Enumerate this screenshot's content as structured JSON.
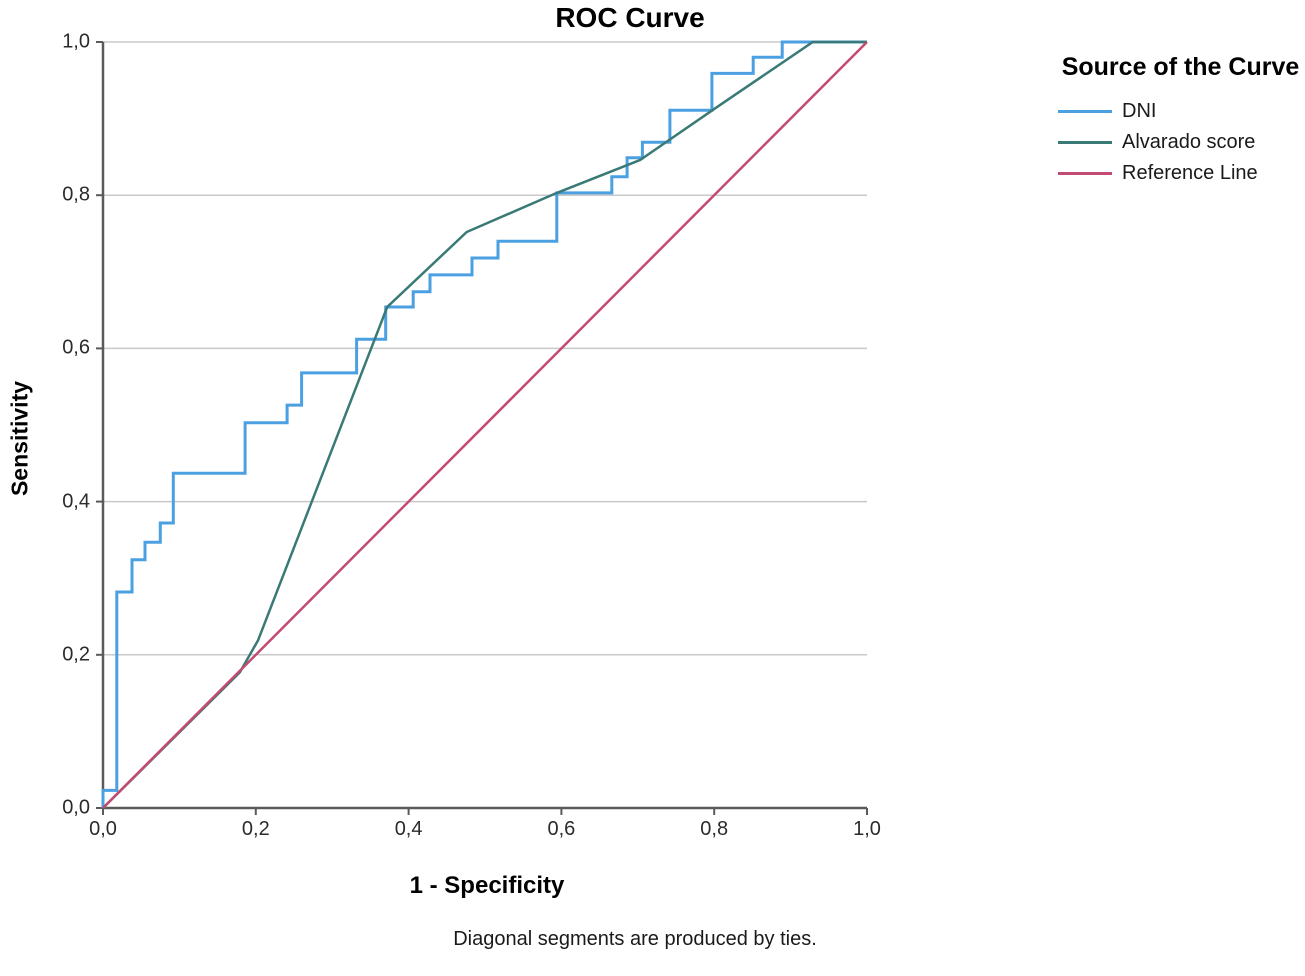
{
  "title": "ROC Curve",
  "footer": "Diagonal segments are produced by ties.",
  "legend": {
    "title": "Source of the Curve",
    "items": [
      {
        "label": "DNI",
        "color": "#4AA0E0"
      },
      {
        "label": "Alvarado score",
        "color": "#3A7A76"
      },
      {
        "label": "Reference Line",
        "color": "#C34A70"
      }
    ]
  },
  "chart_data": {
    "type": "line",
    "title": "ROC Curve",
    "xlabel": "1 - Specificity",
    "ylabel": "Sensitivity",
    "xlim": [
      0,
      1
    ],
    "ylim": [
      0,
      1
    ],
    "grid": "horizontal",
    "grid_color": "#C9C9C9",
    "axis_color": "#5A5A5A",
    "tick_color": "#2b2b2b",
    "legend_position": "right",
    "x_ticks": [
      0,
      0.2,
      0.4,
      0.6,
      0.8,
      1.0
    ],
    "y_ticks": [
      0,
      0.2,
      0.4,
      0.6,
      0.8,
      1.0
    ],
    "x_tick_labels": [
      "0,0",
      "0,2",
      "0,4",
      "0,6",
      "0,8",
      "1,0"
    ],
    "y_tick_labels": [
      "0,0",
      "0,2",
      "0,4",
      "0,6",
      "0,8",
      "1,0"
    ],
    "series": [
      {
        "name": "DNI",
        "color": "#4AA0E0",
        "width": 3,
        "points": [
          [
            0,
            0
          ],
          [
            0,
            0.023
          ],
          [
            0.018,
            0.023
          ],
          [
            0.018,
            0.282
          ],
          [
            0.038,
            0.282
          ],
          [
            0.038,
            0.324
          ],
          [
            0.055,
            0.324
          ],
          [
            0.055,
            0.347
          ],
          [
            0.075,
            0.347
          ],
          [
            0.075,
            0.372
          ],
          [
            0.092,
            0.372
          ],
          [
            0.092,
            0.437
          ],
          [
            0.186,
            0.437
          ],
          [
            0.186,
            0.503
          ],
          [
            0.241,
            0.503
          ],
          [
            0.241,
            0.526
          ],
          [
            0.26,
            0.526
          ],
          [
            0.26,
            0.568
          ],
          [
            0.332,
            0.568
          ],
          [
            0.332,
            0.612
          ],
          [
            0.37,
            0.612
          ],
          [
            0.37,
            0.654
          ],
          [
            0.406,
            0.654
          ],
          [
            0.406,
            0.674
          ],
          [
            0.428,
            0.674
          ],
          [
            0.428,
            0.696
          ],
          [
            0.483,
            0.696
          ],
          [
            0.483,
            0.718
          ],
          [
            0.517,
            0.718
          ],
          [
            0.517,
            0.74
          ],
          [
            0.594,
            0.74
          ],
          [
            0.594,
            0.803
          ],
          [
            0.666,
            0.803
          ],
          [
            0.666,
            0.824
          ],
          [
            0.686,
            0.824
          ],
          [
            0.686,
            0.849
          ],
          [
            0.706,
            0.849
          ],
          [
            0.706,
            0.869
          ],
          [
            0.742,
            0.869
          ],
          [
            0.742,
            0.911
          ],
          [
            0.797,
            0.911
          ],
          [
            0.797,
            0.959
          ],
          [
            0.851,
            0.959
          ],
          [
            0.851,
            0.98
          ],
          [
            0.889,
            0.98
          ],
          [
            0.889,
            1
          ],
          [
            1,
            1
          ]
        ]
      },
      {
        "name": "Alvarado score",
        "color": "#3A7A76",
        "width": 2.5,
        "points": [
          [
            0,
            0
          ],
          [
            0.179,
            0.177
          ],
          [
            0.203,
            0.219
          ],
          [
            0.372,
            0.654
          ],
          [
            0.476,
            0.752
          ],
          [
            0.594,
            0.803
          ],
          [
            0.703,
            0.846
          ],
          [
            0.808,
            0.918
          ],
          [
            0.929,
            1
          ],
          [
            1,
            1
          ]
        ]
      },
      {
        "name": "Reference Line",
        "color": "#C34A70",
        "width": 2.5,
        "points": [
          [
            0,
            0
          ],
          [
            1,
            1
          ]
        ]
      }
    ]
  }
}
